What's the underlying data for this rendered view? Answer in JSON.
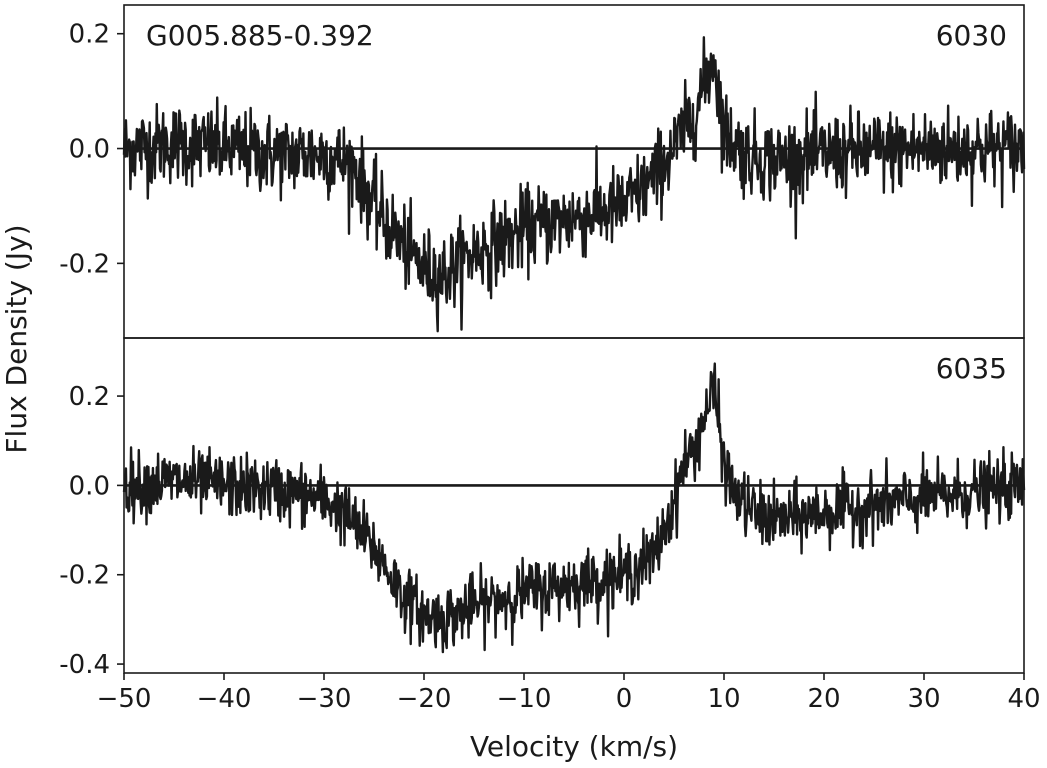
{
  "chart_data": {
    "type": "line",
    "source_name": "G005.885-0.392",
    "xlabel": "Velocity (km/s)",
    "ylabel": "Flux Density (Jy)",
    "xlim": [
      -50,
      40
    ],
    "x_ticks": [
      -50,
      -40,
      -30,
      -20,
      -10,
      0,
      10,
      20,
      30,
      40
    ],
    "x_tick_labels": [
      "−50",
      "−40",
      "−30",
      "−20",
      "−10",
      "0",
      "10",
      "20",
      "30",
      "40"
    ],
    "line_color": "#1a1a1a",
    "grid": false,
    "panels": [
      {
        "label": "6030",
        "ylim": [
          -0.33,
          0.25
        ],
        "y_ticks": [
          -0.2,
          0.0,
          0.2
        ],
        "y_tick_labels": [
          "-0.2",
          "0.0",
          "0.2"
        ],
        "zero_line": true,
        "profile": {
          "x": [
            -50,
            -45,
            -40,
            -35,
            -30,
            -27,
            -25,
            -22,
            -20,
            -18,
            -15,
            -12,
            -10,
            -5,
            0,
            3,
            5,
            7,
            9,
            10,
            12,
            15,
            20,
            30,
            40
          ],
          "y": [
            0.0,
            0.01,
            0.0,
            -0.01,
            -0.01,
            -0.03,
            -0.1,
            -0.17,
            -0.21,
            -0.22,
            -0.18,
            -0.16,
            -0.14,
            -0.12,
            -0.1,
            -0.05,
            0.0,
            0.06,
            0.16,
            0.03,
            -0.01,
            -0.02,
            -0.01,
            0.0,
            0.0
          ]
        },
        "noise_rms": 0.035
      },
      {
        "label": "6035",
        "ylim": [
          -0.42,
          0.33
        ],
        "y_ticks": [
          -0.4,
          -0.2,
          0.0,
          0.2
        ],
        "y_tick_labels": [
          "-0.4",
          "-0.2",
          "0.0",
          "0.2"
        ],
        "zero_line": true,
        "profile": {
          "x": [
            -50,
            -45,
            -40,
            -35,
            -30,
            -28,
            -25,
            -22,
            -20,
            -18,
            -15,
            -10,
            -5,
            0,
            3,
            5,
            6,
            7,
            9,
            10,
            11,
            13,
            15,
            20,
            30,
            40
          ],
          "y": [
            0.0,
            0.01,
            0.0,
            -0.01,
            -0.03,
            -0.06,
            -0.14,
            -0.25,
            -0.29,
            -0.3,
            -0.27,
            -0.24,
            -0.22,
            -0.2,
            -0.16,
            -0.04,
            0.05,
            0.08,
            0.22,
            0.05,
            -0.02,
            -0.06,
            -0.08,
            -0.06,
            -0.03,
            0.0
          ]
        },
        "noise_rms": 0.035
      }
    ]
  }
}
